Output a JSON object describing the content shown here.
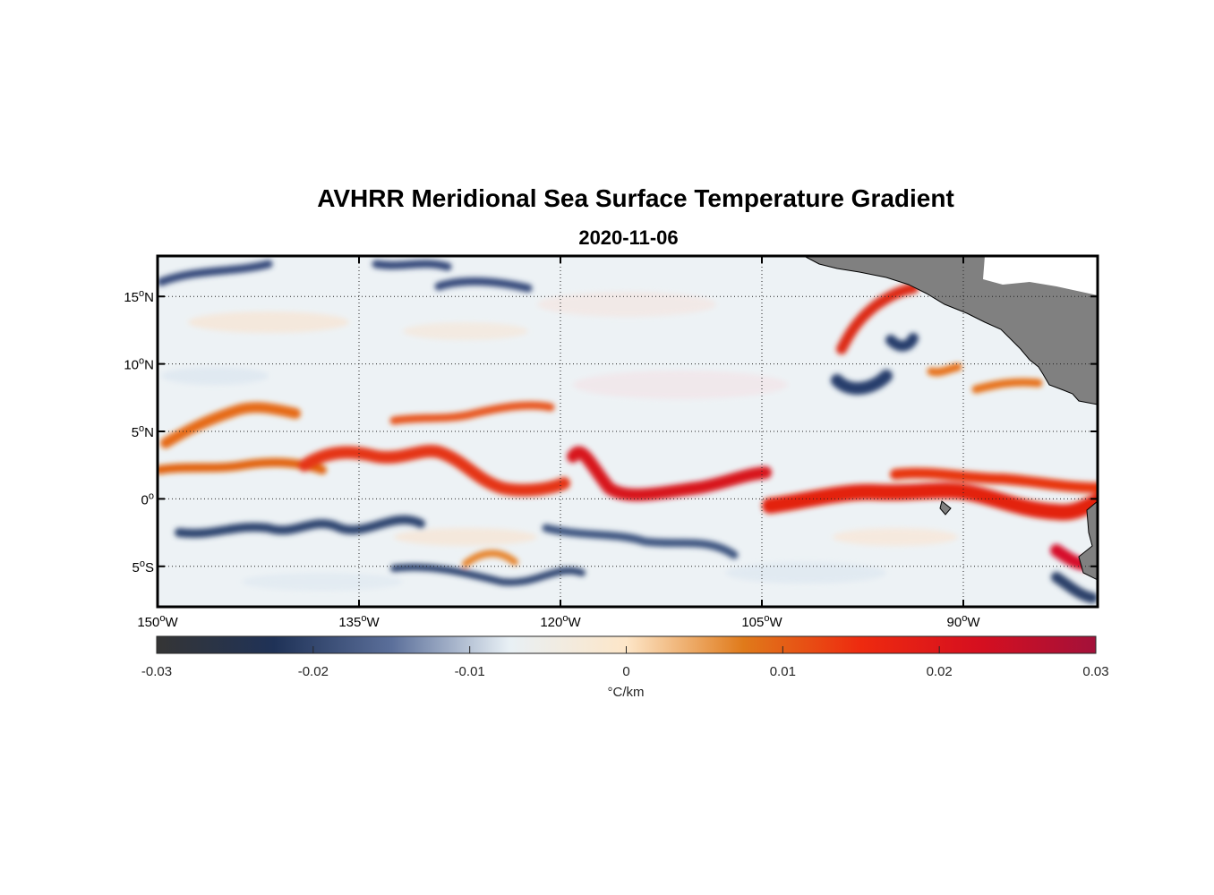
{
  "title": "AVHRR Meridional Sea Surface Temperature Gradient",
  "subtitle": "2020-11-06",
  "map": {
    "lon_range": [
      -150,
      -80
    ],
    "lat_range": [
      -8,
      18
    ],
    "lat_ticks": [
      {
        "value": 15,
        "deg": "15",
        "hemi": "N"
      },
      {
        "value": 10,
        "deg": "10",
        "hemi": "N"
      },
      {
        "value": 5,
        "deg": "5",
        "hemi": "N"
      },
      {
        "value": 0,
        "deg": "0",
        "hemi": ""
      },
      {
        "value": -5,
        "deg": "5",
        "hemi": "S"
      }
    ],
    "lon_ticks": [
      {
        "value": -150,
        "deg": "150",
        "hemi": "W"
      },
      {
        "value": -135,
        "deg": "135",
        "hemi": "W"
      },
      {
        "value": -120,
        "deg": "120",
        "hemi": "W"
      },
      {
        "value": -105,
        "deg": "105",
        "hemi": "W"
      },
      {
        "value": -90,
        "deg": "90",
        "hemi": "W"
      }
    ],
    "land_color": "#808080",
    "positive_fronts": [
      {
        "lat": 4.6,
        "lon_start": -150,
        "lon_end": -140,
        "strength": 0.018
      },
      {
        "lat": 2.2,
        "lon_start": -150,
        "lon_end": -139,
        "strength": 0.015
      },
      {
        "lat": 1.2,
        "lon_start": -139,
        "lon_end": -120,
        "strength": 0.022
      },
      {
        "lat": 1.5,
        "lon_start": -120,
        "lon_end": -106,
        "strength": 0.026
      },
      {
        "lat": 1.0,
        "lon_start": -106,
        "lon_end": -88,
        "strength": 0.025
      },
      {
        "lat": 0.2,
        "lon_start": -88,
        "lon_end": -80,
        "strength": 0.028
      },
      {
        "lat": 12.5,
        "lon_start": -97,
        "lon_end": -93,
        "strength": 0.027
      }
    ],
    "negative_fronts": [
      {
        "lat": -2.5,
        "lon_start": -148,
        "lon_end": -132,
        "strength": -0.022
      },
      {
        "lat": -5.5,
        "lon_start": -132,
        "lon_end": -118,
        "strength": -0.02
      },
      {
        "lat": -3.5,
        "lon_start": -120,
        "lon_end": -107,
        "strength": -0.018
      },
      {
        "lat": 9.0,
        "lon_start": -100,
        "lon_end": -96,
        "strength": -0.024
      },
      {
        "lat": 16.5,
        "lon_start": -135,
        "lon_end": -125,
        "strength": -0.02
      }
    ]
  },
  "colorbar": {
    "min": -0.03,
    "max": 0.03,
    "tick_labels": [
      "-0.03",
      "-0.02",
      "-0.01",
      "0",
      "0.01",
      "0.02",
      "0.03"
    ],
    "tick_values": [
      -0.03,
      -0.02,
      -0.01,
      0,
      0.01,
      0.02,
      0.03
    ],
    "unit": "°C/km",
    "colors": [
      "#353535",
      "#1f3257",
      "#5b6f9a",
      "#e8f0f5",
      "#fde6c8",
      "#e07a1a",
      "#ee2a0f",
      "#d60f1f",
      "#a3113a"
    ]
  }
}
